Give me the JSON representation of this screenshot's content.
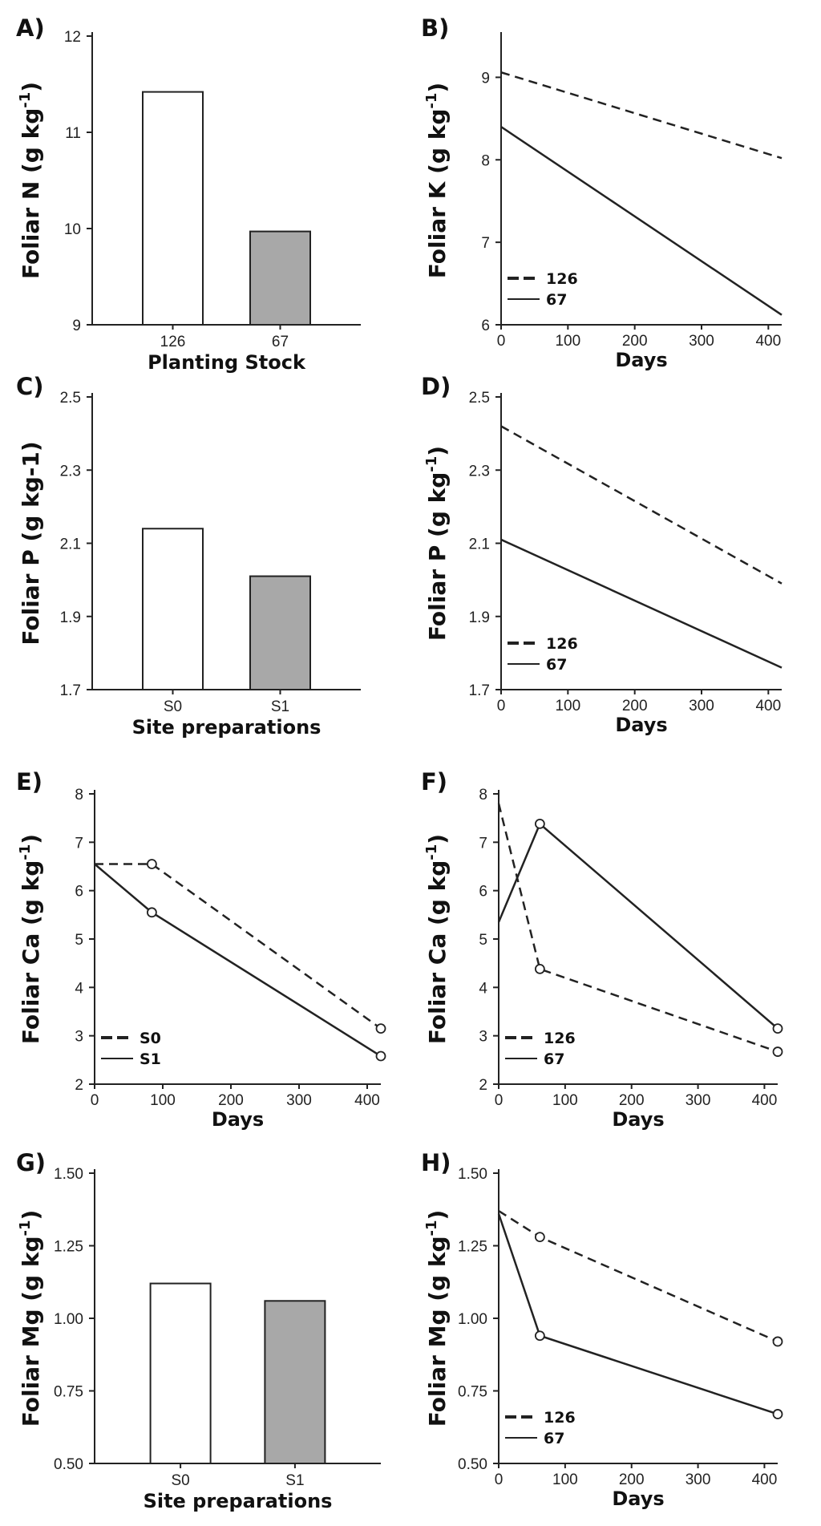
{
  "chart_data": [
    {
      "panel": "A)",
      "type": "bar",
      "categories": [
        "126",
        "67"
      ],
      "values": [
        11.42,
        9.97
      ],
      "bar_colors": [
        "#ffffff",
        "#a8a8a8"
      ],
      "xlabel": "Planting Stock",
      "ylabel": "Foliar N (g kg",
      "ylabel_sup": "-1",
      "ylabel_close": ")",
      "ylim": [
        9,
        12
      ],
      "yticks": [
        "9",
        "10",
        "11",
        "12"
      ]
    },
    {
      "panel": "B)",
      "type": "line",
      "xlabel": "Days",
      "ylabel": "Foliar K (g kg",
      "ylabel_sup": "-1",
      "ylabel_close": ")",
      "xlim": [
        0,
        420
      ],
      "ylim": [
        6,
        9.5
      ],
      "xticks": [
        "0",
        "100",
        "200",
        "300",
        "400"
      ],
      "yticks": [
        "6",
        "7",
        "8",
        "9"
      ],
      "legend_position": "bottom-left",
      "series": [
        {
          "name": "126",
          "style": "dashed",
          "markers": false,
          "x": [
            0,
            420
          ],
          "y": [
            9.06,
            8.02
          ]
        },
        {
          "name": "67",
          "style": "solid",
          "markers": false,
          "x": [
            0,
            420
          ],
          "y": [
            8.4,
            6.12
          ]
        }
      ]
    },
    {
      "panel": "C)",
      "type": "bar",
      "categories": [
        "S0",
        "S1"
      ],
      "values": [
        2.14,
        2.01
      ],
      "bar_colors": [
        "#ffffff",
        "#a8a8a8"
      ],
      "xlabel": "Site preparations",
      "ylabel": "Foliar P (g kg-1)",
      "ylabel_sup": "",
      "ylabel_close": "",
      "ylim": [
        1.7,
        2.5
      ],
      "yticks": [
        "1.7",
        "1.9",
        "2.1",
        "2.3",
        "2.5"
      ]
    },
    {
      "panel": "D)",
      "type": "line",
      "xlabel": "Days",
      "ylabel": "Foliar P (g kg",
      "ylabel_sup": "-1",
      "ylabel_close": ")",
      "xlim": [
        0,
        420
      ],
      "ylim": [
        1.7,
        2.5
      ],
      "xticks": [
        "0",
        "100",
        "200",
        "300",
        "400"
      ],
      "yticks": [
        "1.7",
        "1.9",
        "2.1",
        "2.3",
        "2.5"
      ],
      "legend_position": "bottom-left",
      "series": [
        {
          "name": "126",
          "style": "dashed",
          "markers": false,
          "x": [
            0,
            420
          ],
          "y": [
            2.42,
            1.99
          ]
        },
        {
          "name": "67",
          "style": "solid",
          "markers": false,
          "x": [
            0,
            420
          ],
          "y": [
            2.11,
            1.76
          ]
        }
      ]
    },
    {
      "panel": "E)",
      "type": "line",
      "xlabel": "Days",
      "ylabel": "Foliar Ca (g kg",
      "ylabel_sup": "-1",
      "ylabel_close": ")",
      "xlim": [
        0,
        420
      ],
      "ylim": [
        2,
        8
      ],
      "xticks": [
        "0",
        "100",
        "200",
        "300",
        "400"
      ],
      "yticks": [
        "2",
        "3",
        "4",
        "5",
        "6",
        "7",
        "8"
      ],
      "legend_position": "bottom-left",
      "series": [
        {
          "name": "S0",
          "style": "dashed",
          "markers": true,
          "x": [
            0,
            84,
            420
          ],
          "y": [
            6.55,
            6.55,
            3.15
          ]
        },
        {
          "name": "S1",
          "style": "solid",
          "markers": true,
          "x": [
            0,
            84,
            420
          ],
          "y": [
            6.55,
            5.55,
            2.58
          ]
        }
      ]
    },
    {
      "panel": "F)",
      "type": "line",
      "xlabel": "Days",
      "ylabel": "Foliar Ca (g kg",
      "ylabel_sup": "-1",
      "ylabel_close": ")",
      "xlim": [
        0,
        420
      ],
      "ylim": [
        2,
        8
      ],
      "xticks": [
        "0",
        "100",
        "200",
        "300",
        "400"
      ],
      "yticks": [
        "2",
        "3",
        "4",
        "5",
        "6",
        "7",
        "8"
      ],
      "legend_position": "bottom-left",
      "series": [
        {
          "name": "126",
          "style": "dashed",
          "markers": true,
          "x": [
            0,
            62,
            420
          ],
          "y": [
            7.8,
            4.38,
            2.67
          ]
        },
        {
          "name": "67",
          "style": "solid",
          "markers": true,
          "x": [
            0,
            62,
            420
          ],
          "y": [
            5.35,
            7.38,
            3.15
          ]
        }
      ]
    },
    {
      "panel": "G)",
      "type": "bar",
      "categories": [
        "S0",
        "S1"
      ],
      "values": [
        1.12,
        1.06
      ],
      "bar_colors": [
        "#ffffff",
        "#a8a8a8"
      ],
      "xlabel": "Site preparations",
      "ylabel": "Foliar Mg (g kg",
      "ylabel_sup": "-1",
      "ylabel_close": ")",
      "ylim": [
        0.5,
        1.5
      ],
      "yticks": [
        "0.50",
        "0.75",
        "1.00",
        "1.25",
        "1.50"
      ]
    },
    {
      "panel": "H)",
      "type": "line",
      "xlabel": "Days",
      "ylabel": "Foliar Mg (g kg",
      "ylabel_sup": "-1",
      "ylabel_close": ")",
      "xlim": [
        0,
        420
      ],
      "ylim": [
        0.5,
        1.5
      ],
      "xticks": [
        "0",
        "100",
        "200",
        "300",
        "400"
      ],
      "yticks": [
        "0.50",
        "0.75",
        "1.00",
        "1.25",
        "1.50"
      ],
      "legend_position": "bottom-left",
      "series": [
        {
          "name": "126",
          "style": "dashed",
          "markers": true,
          "x": [
            0,
            62,
            420
          ],
          "y": [
            1.37,
            1.28,
            0.92
          ]
        },
        {
          "name": "67",
          "style": "solid",
          "markers": true,
          "x": [
            0,
            62,
            420
          ],
          "y": [
            1.36,
            0.94,
            0.67
          ]
        }
      ]
    }
  ]
}
